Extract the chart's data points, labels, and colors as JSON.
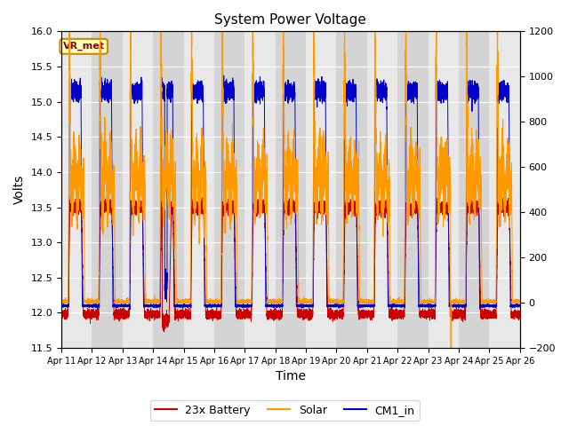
{
  "title": "System Power Voltage",
  "xlabel": "Time",
  "ylabel_left": "Volts",
  "ylim_left": [
    11.5,
    16.0
  ],
  "ylim_right": [
    -200,
    1200
  ],
  "yticks_left": [
    11.5,
    12.0,
    12.5,
    13.0,
    13.5,
    14.0,
    14.5,
    15.0,
    15.5,
    16.0
  ],
  "yticks_right": [
    -200,
    0,
    200,
    400,
    600,
    800,
    1000,
    1200
  ],
  "xlim": [
    0,
    15
  ],
  "xtick_labels": [
    "Apr 11",
    "Apr 12",
    "Apr 13",
    "Apr 14",
    "Apr 15",
    "Apr 16",
    "Apr 17",
    "Apr 18",
    "Apr 19",
    "Apr 20",
    "Apr 21",
    "Apr 22",
    "Apr 23",
    "Apr 24",
    "Apr 25",
    "Apr 26"
  ],
  "xtick_positions": [
    0,
    1,
    2,
    3,
    4,
    5,
    6,
    7,
    8,
    9,
    10,
    11,
    12,
    13,
    14,
    15
  ],
  "legend_labels": [
    "23x Battery",
    "Solar",
    "CM1_in"
  ],
  "legend_colors": [
    "#cc0000",
    "#ff9900",
    "#0000cc"
  ],
  "annotation_text": "VR_met",
  "bg_color": "#e8e8e8",
  "stripe_color": "#d4d4d4",
  "grid_color": "#ffffff"
}
